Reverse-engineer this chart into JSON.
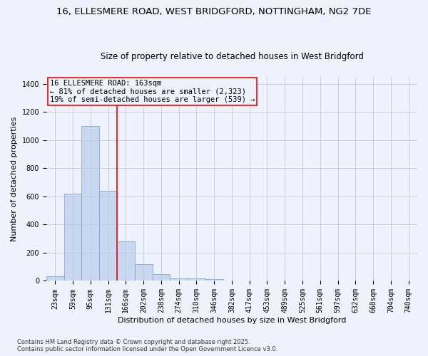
{
  "title_line1": "16, ELLESMERE ROAD, WEST BRIDGFORD, NOTTINGHAM, NG2 7DE",
  "title_line2": "Size of property relative to detached houses in West Bridgford",
  "xlabel": "Distribution of detached houses by size in West Bridgford",
  "ylabel": "Number of detached properties",
  "annotation_line1": "16 ELLESMERE ROAD: 163sqm",
  "annotation_line2": "← 81% of detached houses are smaller (2,323)",
  "annotation_line3": "19% of semi-detached houses are larger (539) →",
  "bar_color": "#c8d8f0",
  "bar_edge_color": "#7799cc",
  "vline_color": "red",
  "categories": [
    "23sqm",
    "59sqm",
    "95sqm",
    "131sqm",
    "166sqm",
    "202sqm",
    "238sqm",
    "274sqm",
    "310sqm",
    "346sqm",
    "382sqm",
    "417sqm",
    "453sqm",
    "489sqm",
    "525sqm",
    "561sqm",
    "597sqm",
    "632sqm",
    "668sqm",
    "704sqm",
    "740sqm"
  ],
  "values": [
    35,
    620,
    1100,
    640,
    280,
    120,
    50,
    20,
    20,
    15,
    0,
    0,
    0,
    0,
    0,
    0,
    0,
    0,
    0,
    0,
    0
  ],
  "ylim": [
    0,
    1450
  ],
  "yticks": [
    0,
    200,
    400,
    600,
    800,
    1000,
    1200,
    1400
  ],
  "bg_color": "#eef2fc",
  "grid_color": "#c0c8e0",
  "footer_line1": "Contains HM Land Registry data © Crown copyright and database right 2025.",
  "footer_line2": "Contains public sector information licensed under the Open Government Licence v3.0.",
  "annotation_box_color": "red",
  "title_fontsize": 9.5,
  "subtitle_fontsize": 8.5,
  "tick_fontsize": 7,
  "ylabel_fontsize": 8,
  "xlabel_fontsize": 8,
  "footer_fontsize": 6,
  "annot_fontsize": 7.5
}
